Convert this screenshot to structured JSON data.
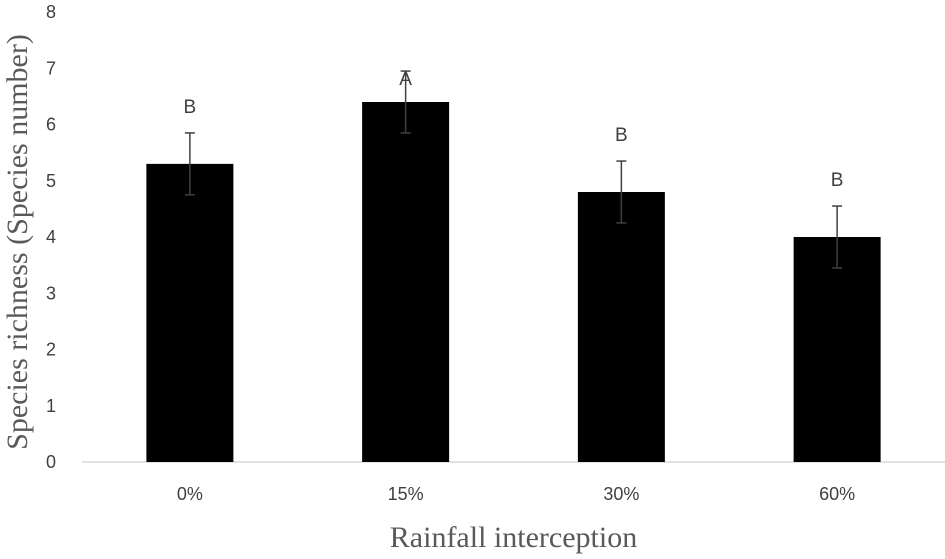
{
  "chart_data": {
    "type": "bar",
    "categories": [
      "0%",
      "15%",
      "30%",
      "60%"
    ],
    "values": [
      5.3,
      6.4,
      4.8,
      4.0
    ],
    "error": [
      0.55,
      0.55,
      0.55,
      0.55
    ],
    "significance_labels": [
      "B",
      "A",
      "B",
      "B"
    ],
    "xlabel": "Rainfall interception",
    "ylabel": "Species richness (Species number)",
    "ylim": [
      0,
      8
    ],
    "yticks": [
      "0",
      "1",
      "2",
      "3",
      "4",
      "5",
      "6",
      "7",
      "8"
    ],
    "grid": false,
    "legend": "none",
    "colors": {
      "bar": "#000000",
      "axis": "#d9d9d9",
      "error_bar": "#404040"
    }
  }
}
